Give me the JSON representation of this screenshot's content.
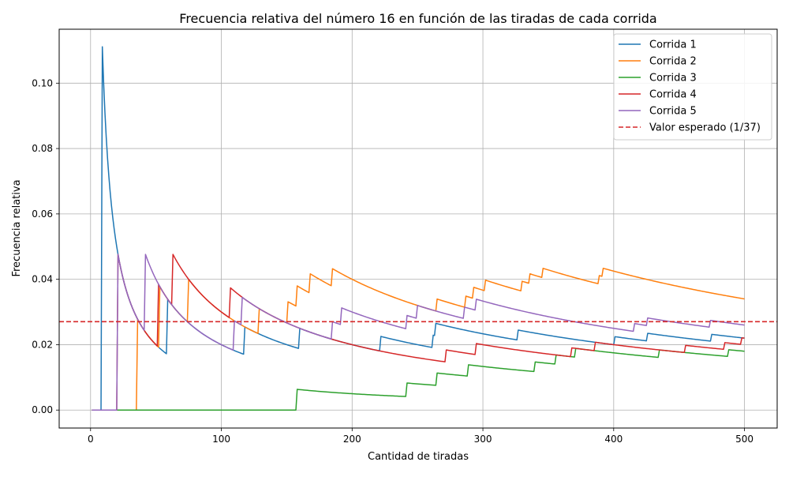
{
  "chart_data": {
    "type": "line",
    "title": "Frecuencia relativa del número 16 en función de las tiradas de cada corrida",
    "xlabel": "Cantidad de tiradas",
    "ylabel": "Frecuencia relativa",
    "xlim": [
      -24,
      525
    ],
    "ylim": [
      -0.0055,
      0.1165
    ],
    "xticks": [
      0,
      100,
      200,
      300,
      400,
      500
    ],
    "xtick_labels": [
      "0",
      "100",
      "200",
      "300",
      "400",
      "500"
    ],
    "yticks": [
      0.0,
      0.02,
      0.04,
      0.06,
      0.08,
      0.1
    ],
    "ytick_labels": [
      "0.00",
      "0.02",
      "0.04",
      "0.06",
      "0.08",
      "0.10"
    ],
    "grid": true,
    "legend_position": "top-right",
    "n_throws": 500,
    "series": [
      {
        "name": "Corrida 1",
        "color": "#1f77b4",
        "hits": [
          9,
          59,
          118,
          160,
          222,
          262,
          264,
          327,
          401,
          426,
          475
        ]
      },
      {
        "name": "Corrida 2",
        "color": "#ff7f0e",
        "hits": [
          36,
          53,
          75,
          129,
          151,
          158,
          168,
          185,
          265,
          287,
          293,
          302,
          330,
          336,
          346,
          389,
          392
        ]
      },
      {
        "name": "Corrida 3",
        "color": "#2ca02c",
        "hits": [
          158,
          242,
          265,
          289,
          340,
          356,
          371,
          435,
          488
        ]
      },
      {
        "name": "Corrida 4",
        "color": "#d62728",
        "hits": [
          21,
          52,
          63,
          107,
          272,
          295,
          368,
          386,
          455,
          485,
          498
        ]
      },
      {
        "name": "Corrida 5",
        "color": "#9467bd",
        "hits": [
          21,
          42,
          110,
          116,
          185,
          192,
          242,
          250,
          286,
          295,
          416,
          426,
          474
        ]
      }
    ],
    "reference_line": {
      "name": "Valor esperado (1/37)",
      "value": 0.02702702702702703,
      "color": "#d62728",
      "style": "dashed"
    }
  }
}
